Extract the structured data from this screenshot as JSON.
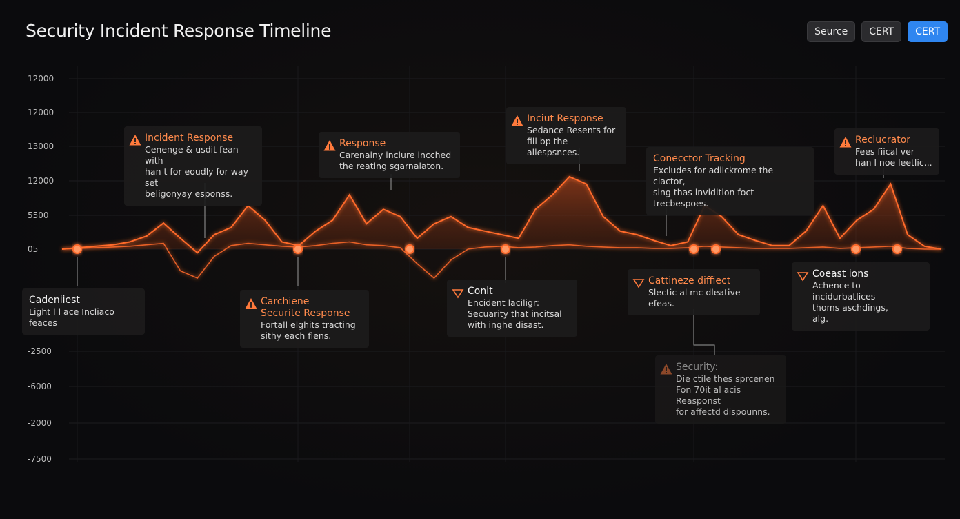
{
  "header": {
    "title": "Security Incident Response Timeline",
    "buttons": [
      {
        "label": "Seurce",
        "active": false
      },
      {
        "label": "CERT",
        "active": false
      },
      {
        "label": "CERT",
        "active": true
      }
    ]
  },
  "axis_labels": [
    "12000",
    "12000",
    "13000",
    "12000",
    "5500",
    "05",
    "-2500",
    "-6000",
    "-2000",
    "-7500"
  ],
  "timeline": {
    "color": "#ff6a2a",
    "series": [
      {
        "values": [
          0,
          2,
          4,
          6,
          10,
          18,
          36,
          15,
          -5,
          20,
          30,
          60,
          40,
          10,
          5,
          25,
          40,
          75,
          35,
          55,
          45,
          15,
          35,
          45,
          30,
          25,
          20,
          15,
          55,
          75,
          100,
          90,
          45,
          25,
          20,
          12,
          5,
          10,
          60,
          45,
          20,
          12,
          5,
          5,
          25,
          60,
          15,
          40,
          55,
          90,
          20,
          4,
          0
        ]
      },
      {
        "values": [
          0,
          1,
          2,
          3,
          4,
          6,
          8,
          -30,
          -40,
          -10,
          5,
          8,
          6,
          4,
          3,
          5,
          8,
          10,
          6,
          5,
          2,
          -20,
          -40,
          -15,
          0,
          3,
          4,
          2,
          3,
          5,
          6,
          4,
          3,
          2,
          2,
          1,
          1,
          2,
          4,
          3,
          2,
          1,
          1,
          1,
          2,
          3,
          1,
          2,
          3,
          4,
          1,
          0,
          0
        ]
      }
    ]
  },
  "annotations": [
    {
      "icon": "warn",
      "title": [
        "Incident Response"
      ],
      "lines": [
        "Cenenge & usdit fean with",
        "han t for eoudly for way set",
        "beligonyay esponss."
      ]
    },
    {
      "icon": "warn",
      "title": [
        "Response"
      ],
      "lines": [
        "Carenainy inclure incched",
        "the reating sgarnalaton."
      ]
    },
    {
      "icon": "warn",
      "title": [
        "Inciut Response"
      ],
      "lines": [
        "Sedance Resents for",
        "fill bp the aliespsnces."
      ]
    },
    {
      "icon": "none",
      "title": [
        "Conecctor Tracking"
      ],
      "lines": [
        "Excludes for adiickrome the clactor,",
        "sing thas invidition foct trecbespoes."
      ]
    },
    {
      "icon": "warn",
      "title": [
        "Reclucrator"
      ],
      "lines": [
        "Fees fiical ver",
        "han l noe leetlic..."
      ]
    },
    {
      "icon": "none",
      "title": [
        "Cadeniiest"
      ],
      "lines": [
        "Light l l ace Incliaco feaces"
      ]
    },
    {
      "icon": "warn",
      "title": [
        "Carchiene",
        "Securite Response"
      ],
      "lines": [
        "Fortall elghits tracting",
        "sithy each flens."
      ]
    },
    {
      "icon": "down",
      "title": [
        "Conlt"
      ],
      "lines": [
        "Encident laciligr:",
        "Secuarity that incitsal",
        "with inghe disast."
      ]
    },
    {
      "icon": "down",
      "title": [
        "Cattineze diffiect"
      ],
      "lines": [
        "Slectic al mc dleative",
        "efeas."
      ]
    },
    {
      "icon": "down",
      "title": [
        "Coeast ions"
      ],
      "lines": [
        "Achence to incidurbatlices",
        "thoms aschdings,",
        "alg."
      ]
    },
    {
      "icon": "warn",
      "title": [
        "Security:"
      ],
      "lines": [
        "Die ctile thes sprcenen",
        "Fon 70it al acis Reasponst",
        "for affectd dispounns."
      ]
    }
  ]
}
